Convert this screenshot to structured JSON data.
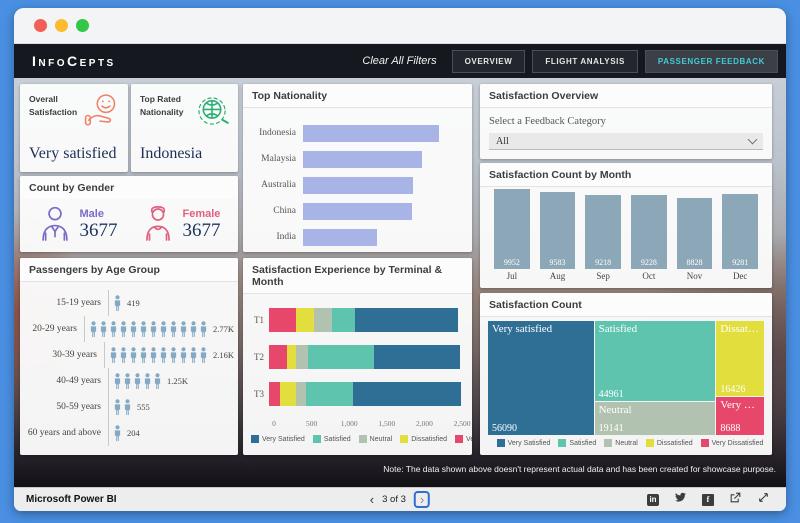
{
  "chrome": {
    "dots": [
      "#f35e56",
      "#fcbc2d",
      "#33c748"
    ]
  },
  "header": {
    "logo": "InfoCepts",
    "clear_filters": "Clear All Filters",
    "tabs": [
      {
        "label": "OVERVIEW",
        "active": false
      },
      {
        "label": "FLIGHT ANALYSIS",
        "active": false
      },
      {
        "label": "PASSENGER FEEDBACK",
        "active": true
      }
    ]
  },
  "kpi": {
    "overall": {
      "label_line1": "Overall",
      "label_line2": "Satisfaction",
      "value": "Very satisfied"
    },
    "nationality": {
      "label_line1": "Top Rated",
      "label_line2": "Nationality",
      "value": "Indonesia"
    },
    "gender": {
      "title": "Count by Gender",
      "male_label": "Male",
      "male_value": "3677",
      "female_label": "Female",
      "female_value": "3677"
    }
  },
  "age_group": {
    "title": "Passengers by Age Group",
    "rows": [
      {
        "label": "15-19 years",
        "value": "419",
        "icons": 1
      },
      {
        "label": "20-29 years",
        "value": "2.77K",
        "icons": 12
      },
      {
        "label": "30-39 years",
        "value": "2.16K",
        "icons": 10
      },
      {
        "label": "40-49 years",
        "value": "1.25K",
        "icons": 5
      },
      {
        "label": "50-59 years",
        "value": "555",
        "icons": 2
      },
      {
        "label": "60 years and above",
        "value": "204",
        "icons": 1
      }
    ]
  },
  "top_nationality": {
    "title": "Top Nationality",
    "type": "bar",
    "max": 1000,
    "axis": [
      "0",
      "500",
      "1,000"
    ],
    "bars": [
      {
        "label": "Indonesia",
        "value": 880
      },
      {
        "label": "Malaysia",
        "value": 770
      },
      {
        "label": "Australia",
        "value": 710
      },
      {
        "label": "China",
        "value": 700
      },
      {
        "label": "India",
        "value": 480
      }
    ]
  },
  "experience": {
    "title": "Satisfaction Experience by Terminal & Month",
    "type": "stacked-bar",
    "max": 2500,
    "axis": [
      "0",
      "500",
      "1,000",
      "1,500",
      "2,000",
      "2,500"
    ],
    "stack_order": [
      "very_dissatisfied",
      "dissatisfied",
      "neutral",
      "satisfied",
      "very_satisfied"
    ],
    "rows": [
      {
        "label": "T1",
        "very_satisfied": 1340,
        "satisfied": 290,
        "neutral": 240,
        "dissatisfied": 230,
        "very_dissatisfied": 350
      },
      {
        "label": "T2",
        "very_satisfied": 1120,
        "satisfied": 850,
        "neutral": 165,
        "dissatisfied": 115,
        "very_dissatisfied": 230
      },
      {
        "label": "T3",
        "very_satisfied": 1400,
        "satisfied": 610,
        "neutral": 125,
        "dissatisfied": 215,
        "very_dissatisfied": 140
      }
    ]
  },
  "legend": [
    {
      "key": "very_satisfied",
      "label": "Very Satisfied"
    },
    {
      "key": "satisfied",
      "label": "Satisfied"
    },
    {
      "key": "neutral",
      "label": "Neutral"
    },
    {
      "key": "dissatisfied",
      "label": "Dissatisfied"
    },
    {
      "key": "very_dissatisfied",
      "label": "Very Dissatisfied"
    }
  ],
  "overview_card": {
    "title": "Satisfaction Overview",
    "select_label": "Select a Feedback Category",
    "select_value": "All"
  },
  "month_chart": {
    "title": "Satisfaction Count by Month",
    "type": "bar",
    "bars": [
      {
        "month": "Jul",
        "value": 9952
      },
      {
        "month": "Aug",
        "value": 9583
      },
      {
        "month": "Sep",
        "value": 9218
      },
      {
        "month": "Oct",
        "value": 9228
      },
      {
        "month": "Nov",
        "value": 8828
      },
      {
        "month": "Dec",
        "value": 9281
      }
    ]
  },
  "treemap": {
    "title": "Satisfaction Count",
    "type": "treemap",
    "blocks": [
      {
        "key": "very_satisfied",
        "label": "Very satisfied",
        "value": 56090
      },
      {
        "key": "satisfied",
        "label": "Satisfied",
        "value": 44961
      },
      {
        "key": "neutral",
        "label": "Neutral",
        "value": 19141
      },
      {
        "key": "dissatisfied",
        "label": "Dissatisfied",
        "value": 16426
      },
      {
        "key": "very_dissatisfied",
        "label": "Very Dissatisfied",
        "value": 8688
      }
    ]
  },
  "colors": {
    "very_satisfied": "#2f6f96",
    "satisfied": "#5ec4ae",
    "neutral": "#b2c2b0",
    "dissatisfied": "#e2de3d",
    "very_dissatisfied": "#e8476c",
    "nationality_bar": "#a9b4e6",
    "month_bar": "#8ca8b8",
    "male": "#7a6bc7",
    "female": "#e0607f",
    "person": "#83a9c3",
    "tab_active_text": "#47c9d6"
  },
  "note": "Note: The data shown above doesn't represent actual data and has been created for showcase purpose.",
  "footer": {
    "brand": "Microsoft Power BI",
    "page": "3 of 3"
  }
}
